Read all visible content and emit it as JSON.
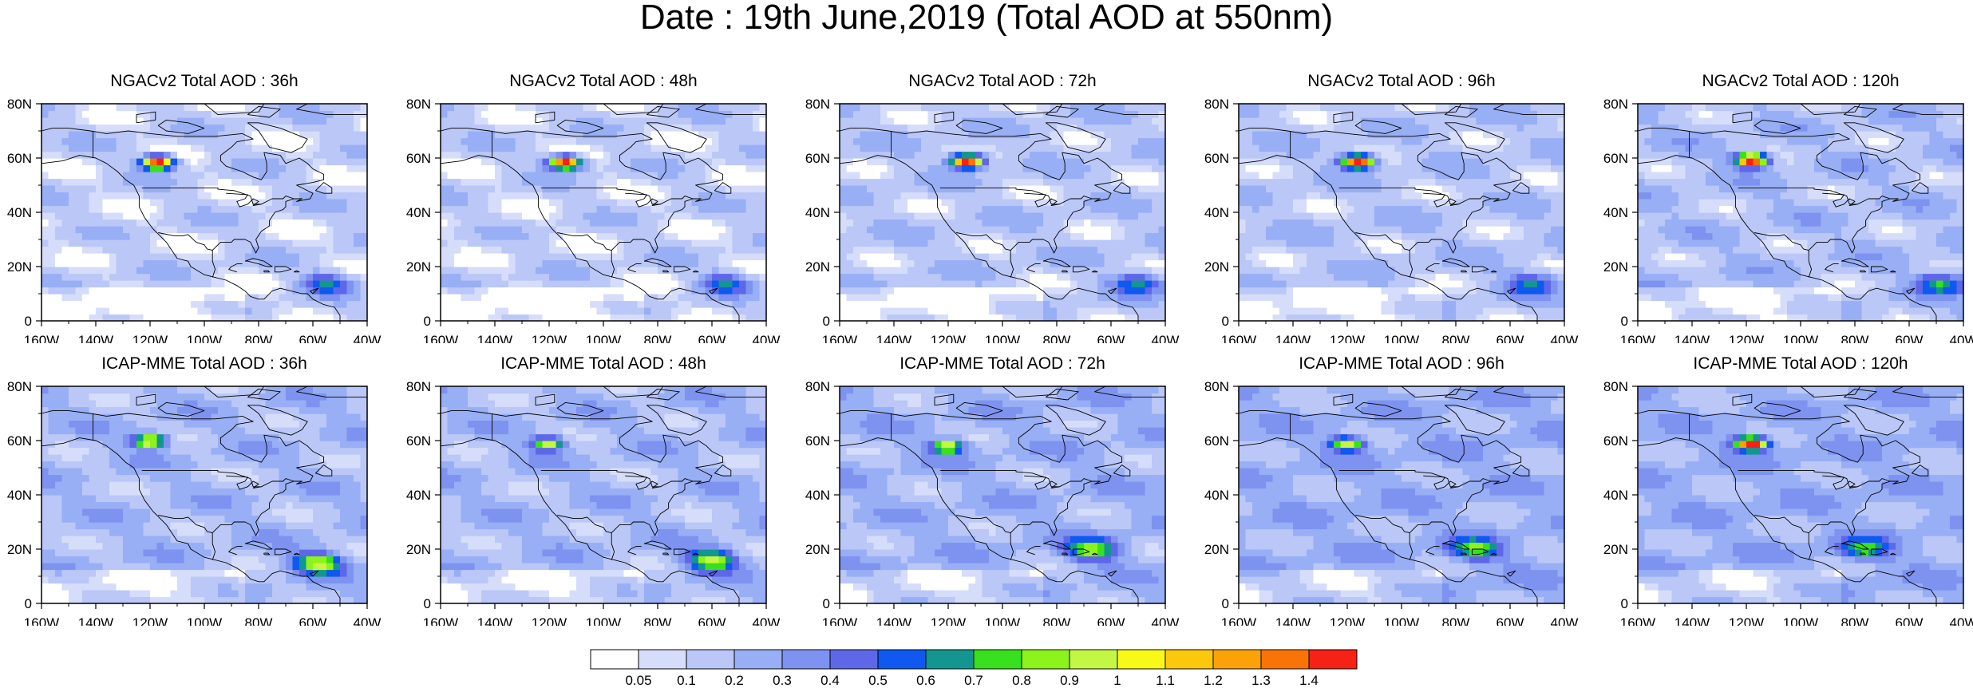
{
  "title": "Date : 19th June,2019 (Total AOD at 550nm)",
  "panels": [
    {
      "title": "NGACv2 Total AOD : 36h",
      "model": "NGACv2",
      "lead": "36h",
      "plume": {
        "lon": -117,
        "lat": 58.5,
        "max": 1.45
      },
      "carib": {
        "lon": -55,
        "lat": 14,
        "max": 0.45
      },
      "bg": 0.12
    },
    {
      "title": "NGACv2 Total AOD : 48h",
      "model": "NGACv2",
      "lead": "48h",
      "plume": {
        "lon": -114,
        "lat": 58.5,
        "max": 1.45
      },
      "carib": {
        "lon": -55,
        "lat": 14,
        "max": 0.45
      },
      "bg": 0.12
    },
    {
      "title": "NGACv2 Total AOD : 72h",
      "model": "NGACv2",
      "lead": "72h",
      "plume": {
        "lon": -113,
        "lat": 59,
        "max": 1.45
      },
      "carib": {
        "lon": -50,
        "lat": 14,
        "max": 0.45
      },
      "bg": 0.15
    },
    {
      "title": "NGACv2 Total AOD : 96h",
      "model": "NGACv2",
      "lead": "96h",
      "plume": {
        "lon": -116,
        "lat": 59,
        "max": 1.45
      },
      "carib": {
        "lon": -52,
        "lat": 14,
        "max": 0.45
      },
      "bg": 0.16
    },
    {
      "title": "NGACv2 Total AOD : 120h",
      "model": "NGACv2",
      "lead": "120h",
      "plume": {
        "lon": -118,
        "lat": 59.5,
        "max": 1.45
      },
      "carib": {
        "lon": -48,
        "lat": 14,
        "max": 0.5
      },
      "bg": 0.18
    },
    {
      "title": "ICAP-MME Total AOD : 36h",
      "model": "ICAP-MME",
      "lead": "36h",
      "plume": {
        "lon": -120,
        "lat": 60,
        "max": 1.0
      },
      "carib": {
        "lon": -58,
        "lat": 15,
        "max": 0.75
      },
      "bg": 0.2
    },
    {
      "title": "ICAP-MME Total AOD : 48h",
      "model": "ICAP-MME",
      "lead": "48h",
      "plume": {
        "lon": -120,
        "lat": 59,
        "max": 0.85
      },
      "carib": {
        "lon": -60,
        "lat": 16,
        "max": 0.72
      },
      "bg": 0.2
    },
    {
      "title": "ICAP-MME Total AOD : 72h",
      "model": "ICAP-MME",
      "lead": "72h",
      "plume": {
        "lon": -120,
        "lat": 58,
        "max": 0.85
      },
      "carib": {
        "lon": -67,
        "lat": 20,
        "max": 0.65
      },
      "bg": 0.22
    },
    {
      "title": "ICAP-MME Total AOD : 96h",
      "model": "ICAP-MME",
      "lead": "96h",
      "plume": {
        "lon": -120,
        "lat": 59,
        "max": 0.8
      },
      "carib": {
        "lon": -73,
        "lat": 20,
        "max": 0.55
      },
      "bg": 0.24
    },
    {
      "title": "ICAP-MME Total AOD : 120h",
      "model": "ICAP-MME",
      "lead": "120h",
      "plume": {
        "lon": -118,
        "lat": 59,
        "max": 1.4
      },
      "carib": {
        "lon": -77,
        "lat": 20,
        "max": 0.5
      },
      "bg": 0.24
    }
  ],
  "axes": {
    "lon_ticks": [
      "160W",
      "140W",
      "120W",
      "100W",
      "80W",
      "60W",
      "40W"
    ],
    "lon_values": [
      -160,
      -140,
      -120,
      -100,
      -80,
      -60,
      -40
    ],
    "lat_ticks": [
      "0",
      "20N",
      "40N",
      "60N",
      "80N"
    ],
    "lat_values": [
      0,
      20,
      40,
      60,
      80
    ],
    "lon_range": [
      -160,
      -40
    ],
    "lat_range": [
      0,
      80
    ]
  },
  "colorbar": {
    "labels": [
      "0.05",
      "0.1",
      "0.2",
      "0.3",
      "0.4",
      "0.5",
      "0.6",
      "0.7",
      "0.8",
      "0.9",
      "1",
      "1.1",
      "1.2",
      "1.3",
      "1.4"
    ],
    "thresholds": [
      0.05,
      0.1,
      0.2,
      0.3,
      0.4,
      0.5,
      0.6,
      0.7,
      0.8,
      0.9,
      1.0,
      1.1,
      1.2,
      1.3,
      1.4
    ],
    "colors": [
      "#ffffff",
      "#d6ddfa",
      "#bac7f7",
      "#98aef5",
      "#7e92f0",
      "#5e67e8",
      "#0f58f0",
      "#139690",
      "#39e01e",
      "#8cf31b",
      "#c4f744",
      "#f9f918",
      "#fbc80b",
      "#fca209",
      "#f97406",
      "#f52215"
    ]
  }
}
